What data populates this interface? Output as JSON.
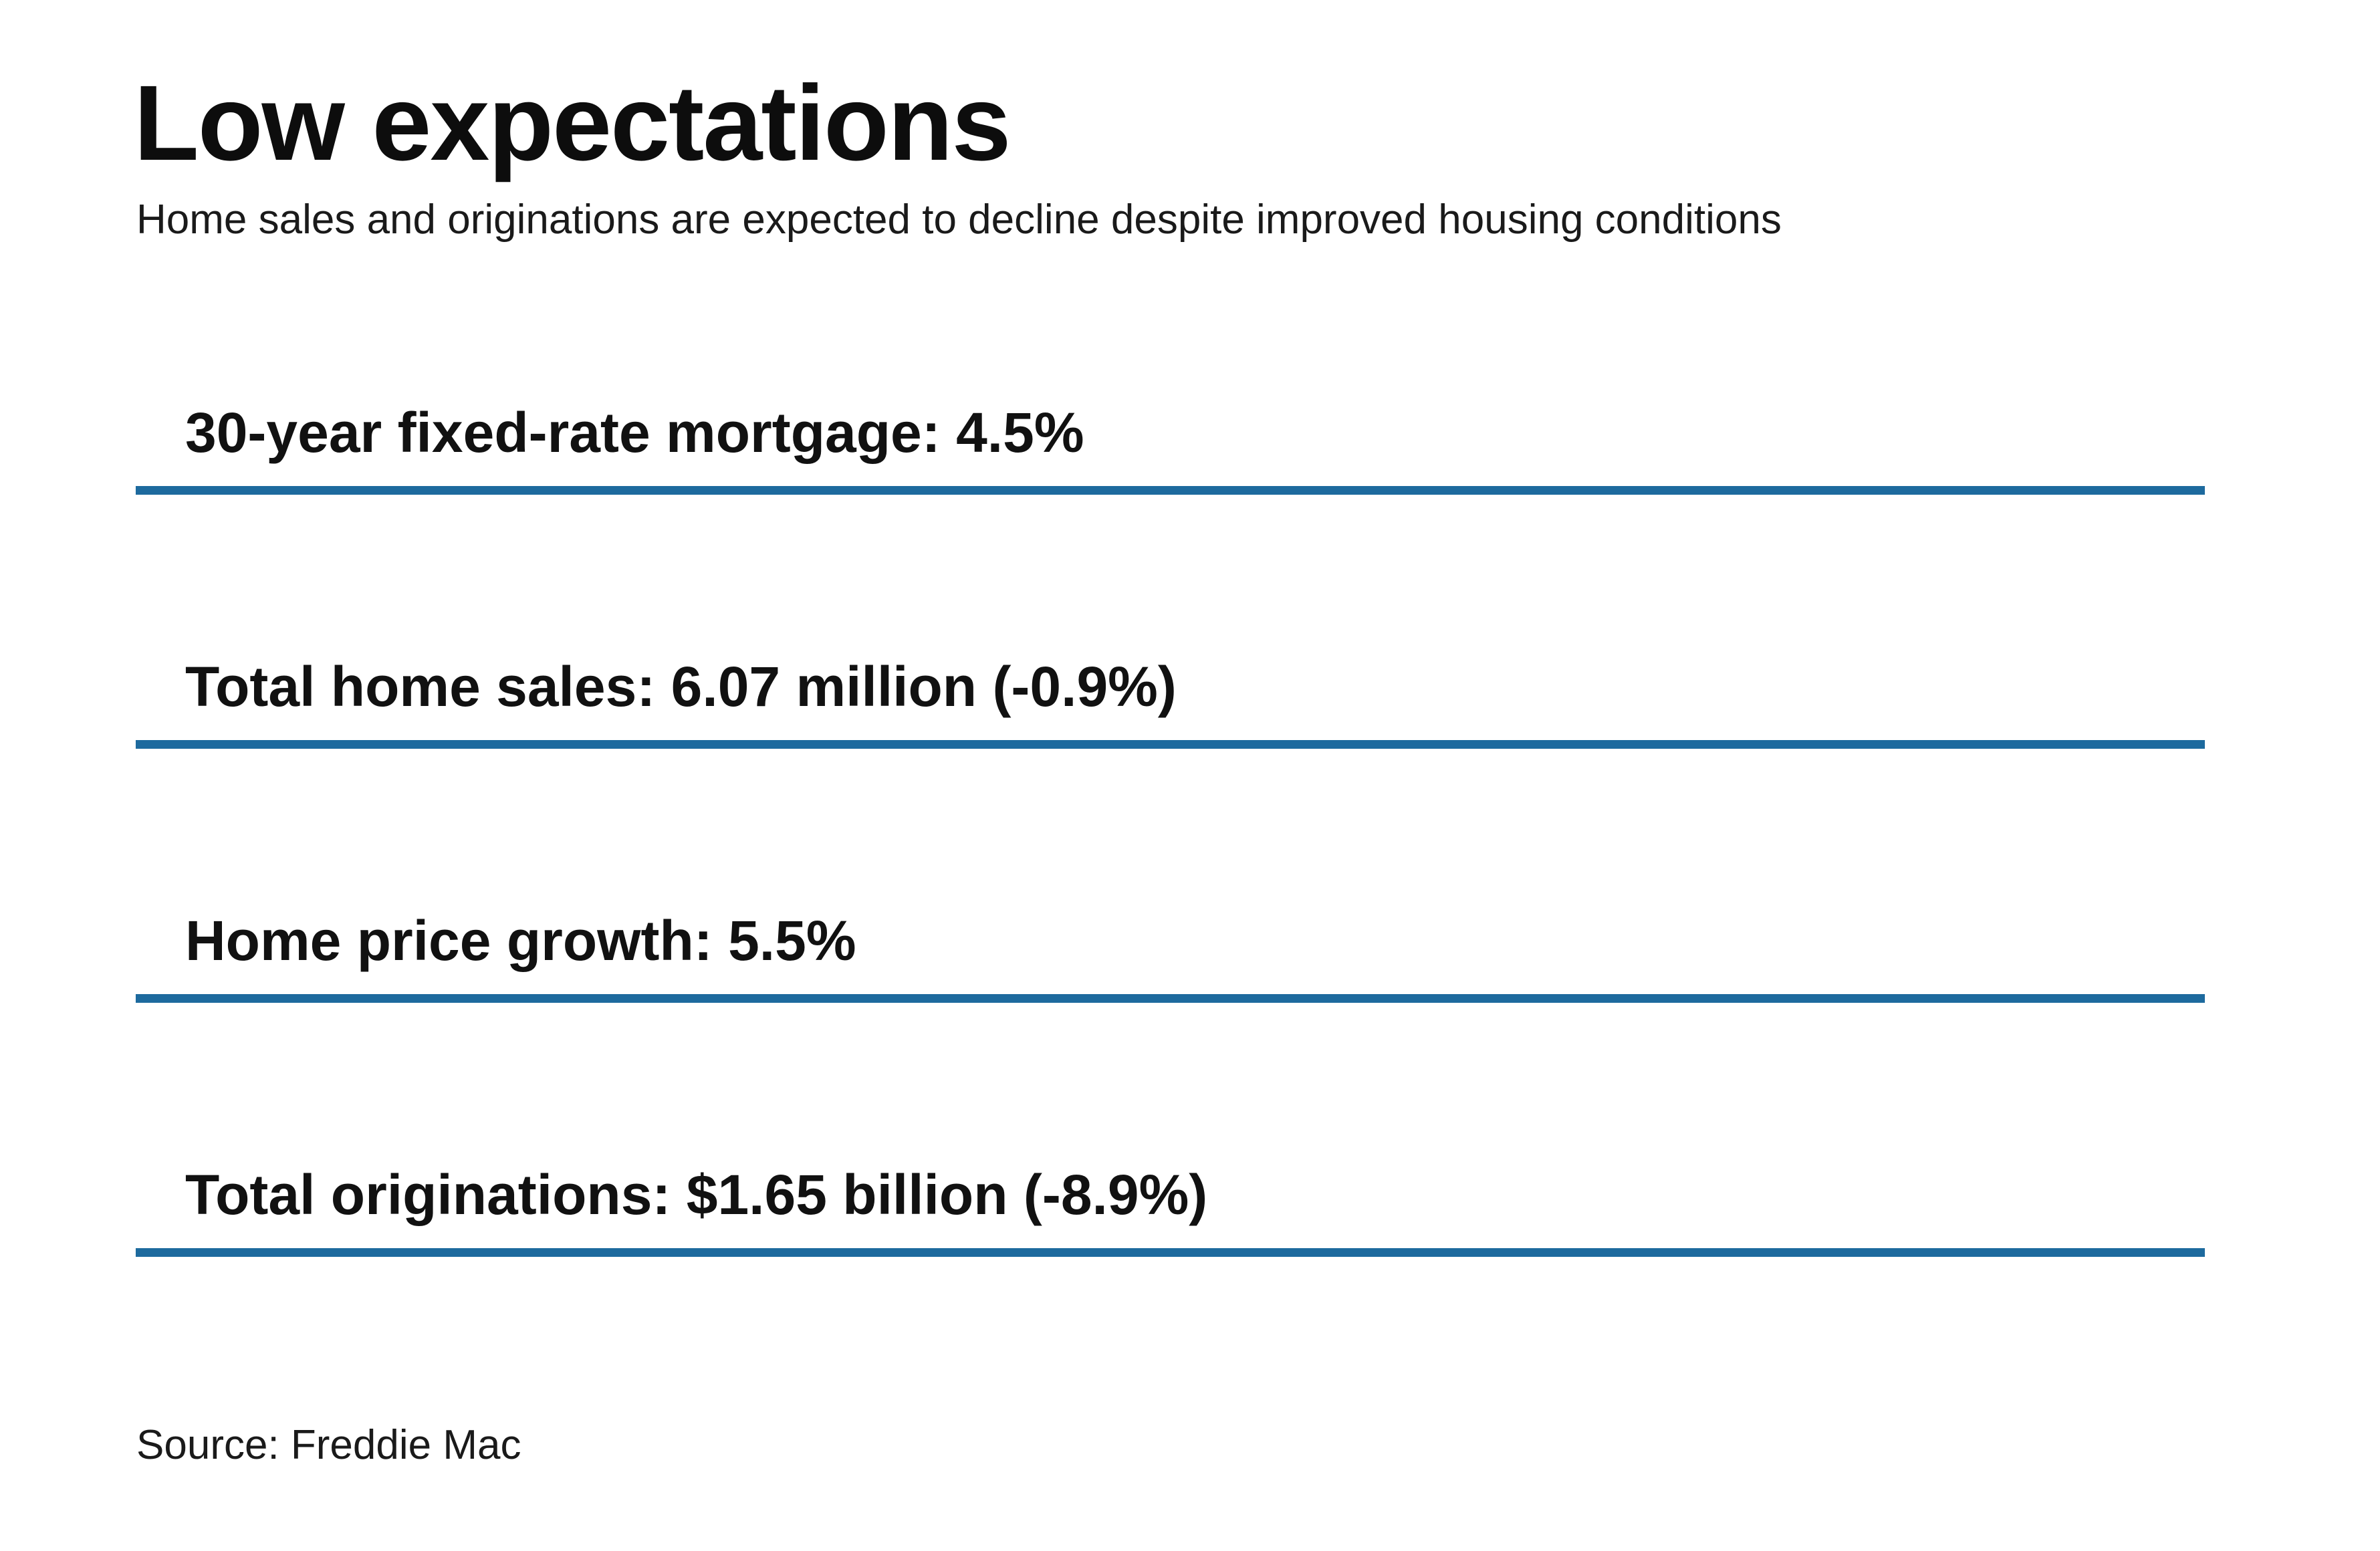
{
  "header": {
    "title": "Low expectations",
    "subtitle": "Home sales and originations are expected to decline despite improved housing conditions"
  },
  "metrics": [
    {
      "label": "30-year fixed-rate mortgage: 4.5%"
    },
    {
      "label": "Total home sales: 6.07 million (-0.9%)"
    },
    {
      "label": "Home price growth: 5.5%"
    },
    {
      "label": "Total originations: $1.65 billion (-8.9%)"
    }
  ],
  "source": "Source: Freddie Mac",
  "colors": {
    "rule": "#1d6a9e",
    "text": "#161616"
  },
  "chart_data": {
    "type": "table",
    "title": "Low expectations",
    "subtitle": "Home sales and originations are expected to decline despite improved housing conditions",
    "source": "Source: Freddie Mac",
    "rows": [
      {
        "label": "30-year fixed-rate mortgage",
        "value": "4.5%",
        "change": null
      },
      {
        "label": "Total home sales",
        "value": "6.07 million",
        "change": "-0.9%"
      },
      {
        "label": "Home price growth",
        "value": "5.5%",
        "change": null
      },
      {
        "label": "Total originations",
        "value": "$1.65 billion",
        "change": "-8.9%"
      }
    ],
    "layout_hints": {
      "style": "list-of-stats-with-underline-rules",
      "rule_color": "#1d6a9e",
      "background": "#ffffff"
    }
  }
}
